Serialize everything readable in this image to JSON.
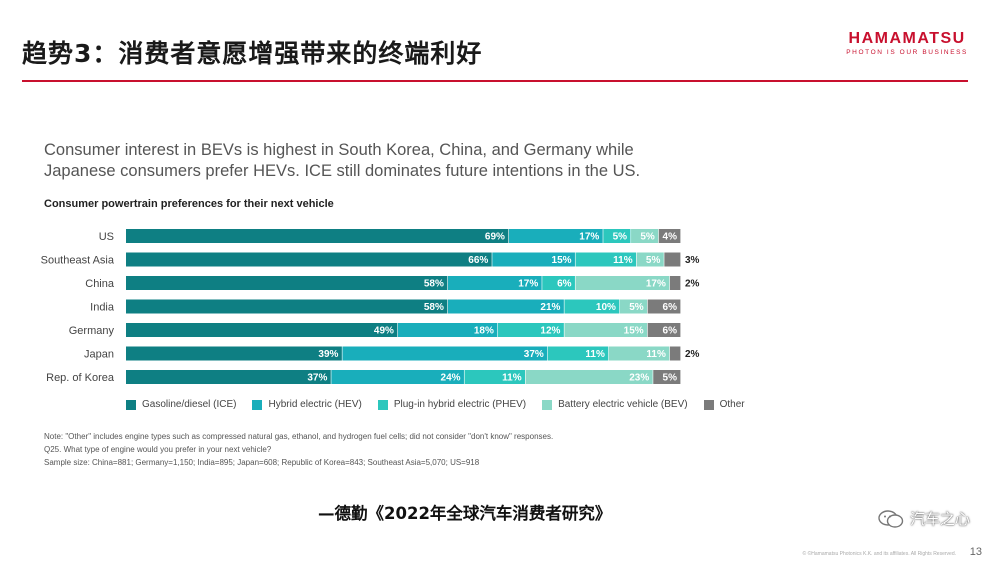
{
  "slide": {
    "title": "趋势3：消费者意愿增强带来的终端利好",
    "logo_main": "HAMAMATSU",
    "logo_tagline": "PHOTON IS OUR BUSINESS",
    "headline_line1": "Consumer interest in BEVs is highest in South Korea, China, and Germany while",
    "headline_line2": "Japanese consumers prefer HEVs. ICE still dominates future intentions in the US.",
    "notes": [
      "Note: \"Other\" includes engine types such as compressed natural gas, ethanol, and hydrogen fuel cells; did not consider \"don't know\" responses.",
      "Q25. What type of engine would you prefer in your next vehicle?",
      "Sample size: China=881; Germany=1,150; India=895; Japan=608; Republic of Korea=843; Southeast Asia=5,070; US=918"
    ],
    "source": "—德勤《2022年全球汽车消费者研究》",
    "watermark": "汽车之心",
    "copyright": "© ©Hamamatsu Photonics K.K. and its affiliates. All Rights Reserved.",
    "page_number": "13",
    "brand_color": "#c8102e"
  },
  "chart_data": {
    "type": "bar",
    "orientation": "horizontal",
    "stacked": true,
    "title": "Consumer powertrain preferences for their next vehicle",
    "categories": [
      "US",
      "Southeast Asia",
      "China",
      "India",
      "Germany",
      "Japan",
      "Rep. of Korea"
    ],
    "series": [
      {
        "name": "Gasoline/diesel (ICE)",
        "color": "#0e7f83",
        "values": [
          69,
          66,
          58,
          58,
          49,
          39,
          37
        ]
      },
      {
        "name": "Hybrid electric (HEV)",
        "color": "#19aebb",
        "values": [
          17,
          15,
          17,
          21,
          18,
          37,
          24
        ]
      },
      {
        "name": "Plug-in hybrid electric (PHEV)",
        "color": "#2cc7bd",
        "values": [
          5,
          11,
          6,
          10,
          12,
          11,
          11
        ]
      },
      {
        "name": "Battery electric vehicle (BEV)",
        "color": "#8ad8c6",
        "values": [
          5,
          5,
          17,
          5,
          15,
          11,
          23
        ]
      },
      {
        "name": "Other",
        "color": "#7b7b7b",
        "values": [
          4,
          3,
          2,
          6,
          6,
          2,
          5
        ]
      }
    ],
    "xlim": [
      0,
      100
    ],
    "legend_position": "bottom",
    "grid": false
  }
}
